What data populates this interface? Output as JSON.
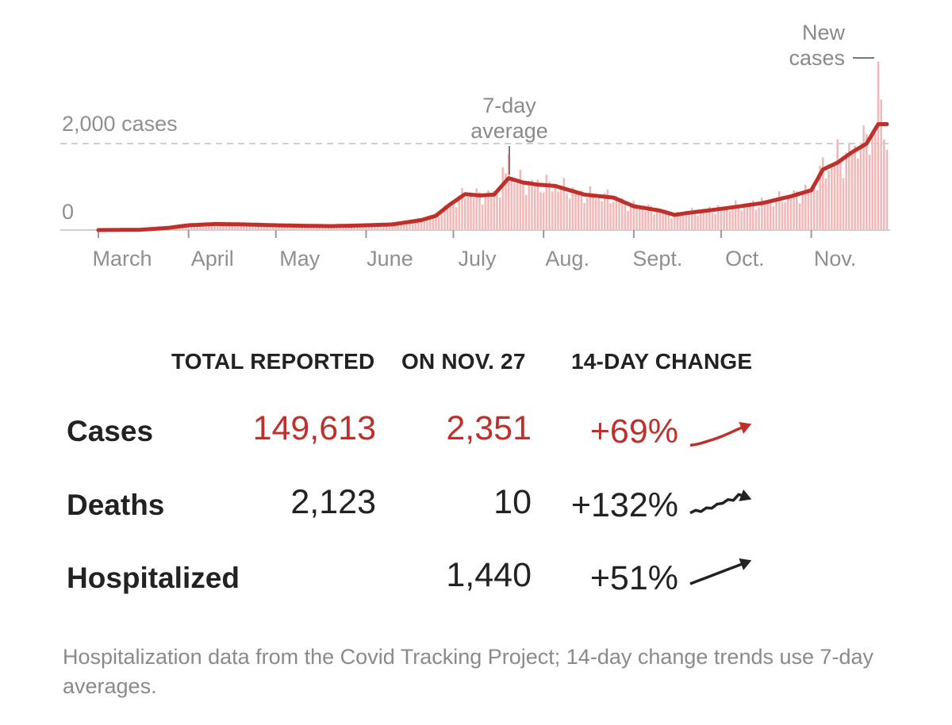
{
  "chart_data": {
    "type": "bar",
    "title": "",
    "xlabel": "",
    "ylabel": "",
    "x_start": "2020-03-01",
    "x_end": "2020-11-27",
    "ylim": [
      0,
      2400
    ],
    "y_gridline": {
      "value": 2000,
      "label": "2,000 cases"
    },
    "y_zero_label": "0",
    "month_ticks": [
      {
        "date": "2020-03-01",
        "label": "March"
      },
      {
        "date": "2020-04-01",
        "label": "April"
      },
      {
        "date": "2020-05-01",
        "label": "May"
      },
      {
        "date": "2020-06-01",
        "label": "June"
      },
      {
        "date": "2020-07-01",
        "label": "July"
      },
      {
        "date": "2020-08-01",
        "label": "Aug."
      },
      {
        "date": "2020-09-01",
        "label": "Sept."
      },
      {
        "date": "2020-10-01",
        "label": "Oct."
      },
      {
        "date": "2020-11-01",
        "label": "Nov."
      }
    ],
    "series": [
      {
        "name": "New cases",
        "kind": "bars",
        "color": "#f2b8b8"
      },
      {
        "name": "7-day average",
        "kind": "line",
        "color": "#c0302b"
      }
    ],
    "average_points": [
      [
        "2020-03-01",
        0
      ],
      [
        "2020-03-15",
        5
      ],
      [
        "2020-03-25",
        50
      ],
      [
        "2020-04-01",
        110
      ],
      [
        "2020-04-10",
        140
      ],
      [
        "2020-04-20",
        130
      ],
      [
        "2020-05-01",
        110
      ],
      [
        "2020-05-10",
        100
      ],
      [
        "2020-05-20",
        90
      ],
      [
        "2020-06-01",
        110
      ],
      [
        "2020-06-10",
        130
      ],
      [
        "2020-06-20",
        230
      ],
      [
        "2020-06-25",
        330
      ],
      [
        "2020-06-30",
        600
      ],
      [
        "2020-07-05",
        830
      ],
      [
        "2020-07-10",
        800
      ],
      [
        "2020-07-15",
        820
      ],
      [
        "2020-07-20",
        1200
      ],
      [
        "2020-07-25",
        1100
      ],
      [
        "2020-07-30",
        1050
      ],
      [
        "2020-08-05",
        1020
      ],
      [
        "2020-08-15",
        820
      ],
      [
        "2020-08-25",
        750
      ],
      [
        "2020-09-01",
        550
      ],
      [
        "2020-09-10",
        450
      ],
      [
        "2020-09-15",
        350
      ],
      [
        "2020-09-20",
        400
      ],
      [
        "2020-09-25",
        440
      ],
      [
        "2020-10-01",
        490
      ],
      [
        "2020-10-15",
        620
      ],
      [
        "2020-10-25",
        780
      ],
      [
        "2020-11-01",
        920
      ],
      [
        "2020-11-05",
        1400
      ],
      [
        "2020-11-10",
        1560
      ],
      [
        "2020-11-15",
        1800
      ],
      [
        "2020-11-20",
        2000
      ],
      [
        "2020-11-24",
        2450
      ],
      [
        "2020-11-27",
        2450
      ]
    ],
    "bar_spikes": [
      [
        "2020-07-18",
        1450
      ],
      [
        "2020-07-20",
        1750
      ],
      [
        "2020-11-10",
        2100
      ],
      [
        "2020-11-18",
        1950
      ],
      [
        "2020-11-24",
        3900
      ],
      [
        "2020-11-26",
        2100
      ]
    ],
    "annotations": {
      "avg_label": [
        "7-day",
        "average"
      ],
      "bars_label": [
        "New",
        "cases"
      ]
    }
  },
  "table": {
    "headers": {
      "total": "TOTAL REPORTED",
      "on_date": "ON NOV. 27",
      "change": "14-DAY CHANGE"
    },
    "rows": [
      {
        "label": "Cases",
        "total": "149,613",
        "on_date": "2,351",
        "change": "+69%",
        "spark": [
          0.1,
          0.14,
          0.2,
          0.28,
          0.36,
          0.45,
          0.55,
          0.66,
          0.78,
          0.9,
          1.0
        ],
        "color": "#c0302b"
      },
      {
        "label": "Deaths",
        "total": "2,123",
        "on_date": "10",
        "change": "+132%",
        "spark": [
          0.05,
          0.18,
          0.12,
          0.3,
          0.28,
          0.48,
          0.52,
          0.7,
          0.66,
          0.95,
          0.85
        ],
        "color": "#222222"
      },
      {
        "label": "Hospitalized",
        "total": "",
        "on_date": "1,440",
        "change": "+51%",
        "spark": [
          0.0,
          0.1,
          0.2,
          0.3,
          0.4,
          0.5,
          0.6,
          0.7,
          0.8,
          0.9,
          1.0
        ],
        "color": "#222222"
      }
    ]
  },
  "footnote": "Hospitalization data from the Covid Tracking Project; 14-day change trends use 7-day averages."
}
